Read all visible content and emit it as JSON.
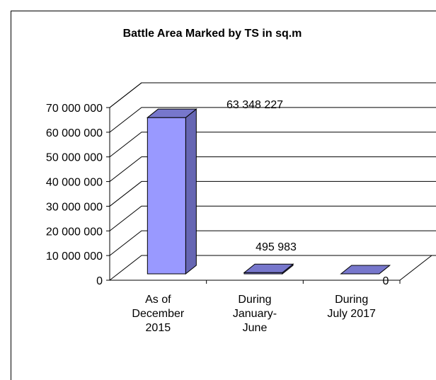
{
  "chart_data": {
    "type": "bar3d",
    "title": "Battle Area Marked by TS in sq.m",
    "categories": [
      [
        "As of",
        "December",
        "2015"
      ],
      [
        "During",
        "January-",
        "June"
      ],
      [
        "During",
        "July 2017"
      ]
    ],
    "values": [
      63348227,
      495983,
      0
    ],
    "value_labels": [
      "63 348 227",
      "495 983",
      "0"
    ],
    "color": "#9999ff",
    "ylim": [
      0,
      70000000
    ],
    "yticks": [
      0,
      {
        "value": 10000000,
        "label": "10 000 000"
      },
      {
        "value": 20000000,
        "label": "20 000 000"
      },
      {
        "value": 30000000,
        "label": "30 000 000"
      },
      {
        "value": 40000000,
        "label": "40 000 000"
      },
      {
        "value": 50000000,
        "label": "50 000 000"
      },
      {
        "value": 60000000,
        "label": "60 000 000"
      },
      {
        "value": 70000000,
        "label": "70 000 000"
      }
    ],
    "grid": true
  }
}
